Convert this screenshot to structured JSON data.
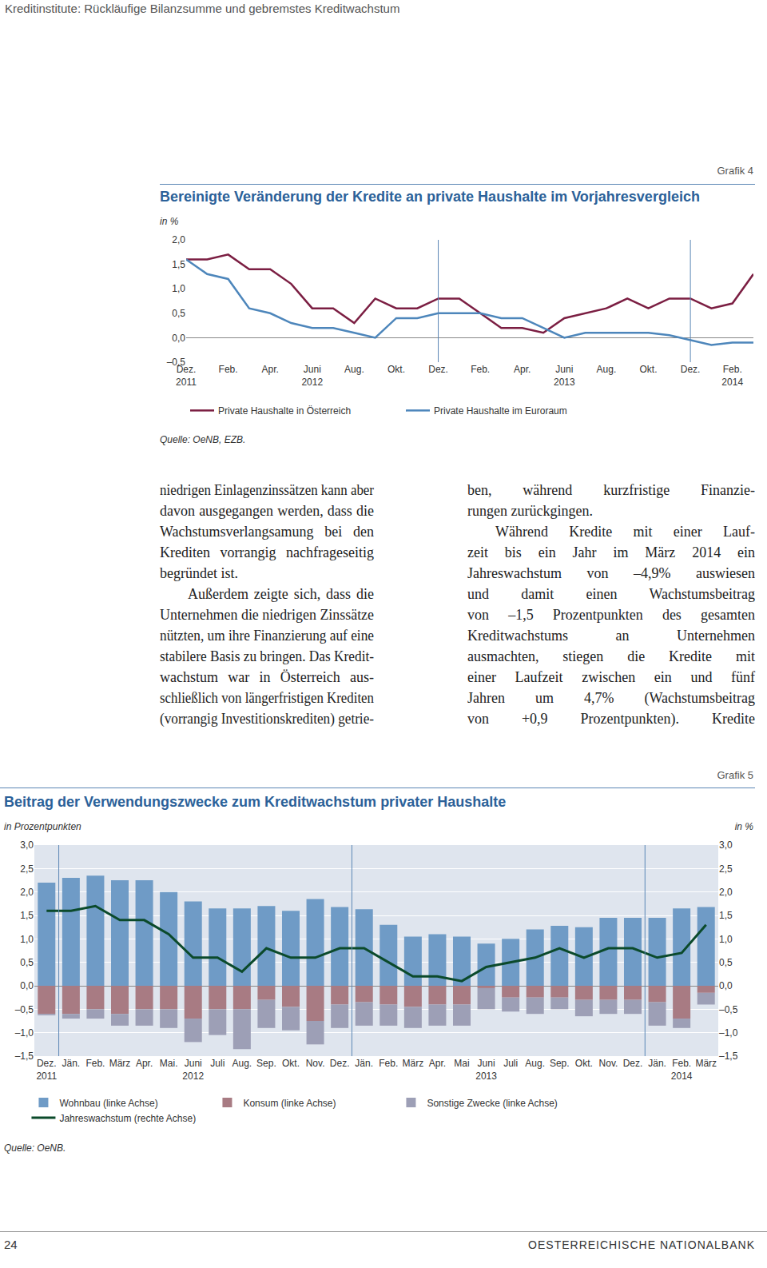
{
  "running_head": "Kreditinstitute: Rückläufige Bilanzsumme und gebremstes Kreditwachstum",
  "text": {
    "columns": [
      [
        [
          "niedrigen Einlagenzinssätzen kann aber",
          "davon ausgegangen werden, dass die",
          "Wachstumsverlangsamung bei den",
          "Krediten vorrangig nachfrageseitig",
          "begründet ist."
        ],
        [
          "Außerdem zeigte sich, dass die",
          "Unternehmen die niedrigen Zinssätze",
          "nützten, um ihre Finanzierung auf eine",
          "stabilere Basis zu bringen. Das Kredit-",
          "wachstum war in Österreich aus-",
          "schließlich von längerfristigen Krediten",
          "(vorrangig Investitionskrediten) getrie-"
        ]
      ],
      [
        [
          "ben, während kurzfristige Finanzie-",
          "rungen zurückgingen."
        ],
        [
          "Während Kredite mit einer Lauf-",
          "zeit bis ein Jahr im März 2014 ein",
          "Jahreswachstum von –4,9% auswiesen",
          "und damit einen Wachstumsbeitrag",
          "von –1,5 Prozentpunkten des gesamten",
          "Kreditwachstums an Unternehmen",
          "ausmachten, stiegen die Kredite mit",
          "einer Laufzeit zwischen ein und fünf",
          "Jahren um 4,7% (Wachstumsbeitrag",
          "von +0,9 Prozentpunkten). Kredite"
        ]
      ]
    ]
  },
  "footer": {
    "page_number": "24",
    "publisher": "OESTERREICHISCHE NATIONALBANK"
  },
  "chart_data": [
    {
      "type": "line",
      "figure_label": "Grafik 4",
      "title": "Bereinigte Veränderung der Kredite an private Haushalte im Vorjahresvergleich",
      "ylabel": "in %",
      "source": "Quelle: OeNB, EZB.",
      "categories": [
        "Dez.\n2011",
        null,
        "Feb.",
        null,
        "Apr.",
        null,
        "Juni\n2012",
        null,
        "Aug.",
        null,
        "Okt.",
        null,
        "Dez.",
        null,
        "Feb.",
        null,
        "Apr.",
        null,
        "Juni\n2013",
        null,
        "Aug.",
        null,
        "Okt.",
        null,
        "Dez.",
        null,
        "Feb.\n2014",
        null
      ],
      "series": [
        {
          "name": "Private Haushalte in Österreich",
          "color": "#7b1e42",
          "values": [
            1.6,
            1.6,
            1.7,
            1.4,
            1.4,
            1.1,
            0.6,
            0.6,
            0.3,
            0.8,
            0.6,
            0.6,
            0.8,
            0.8,
            0.5,
            0.2,
            0.2,
            0.1,
            0.4,
            0.5,
            0.6,
            0.8,
            0.6,
            0.8,
            0.8,
            0.6,
            0.7,
            1.3
          ]
        },
        {
          "name": "Private Haushalte im Euroraum",
          "color": "#4d86bb",
          "values": [
            1.6,
            1.3,
            1.2,
            0.6,
            0.5,
            0.3,
            0.2,
            0.2,
            0.1,
            0.0,
            0.4,
            0.4,
            0.5,
            0.5,
            0.5,
            0.4,
            0.4,
            0.2,
            0.0,
            0.1,
            0.1,
            0.1,
            0.1,
            0.05,
            -0.05,
            -0.15,
            -0.1,
            -0.1
          ]
        }
      ],
      "ylim": [
        -0.5,
        2.0
      ],
      "yticks": [
        {
          "value": -0.5,
          "label": "–0,5"
        },
        {
          "value": 0,
          "label": "0,0"
        },
        {
          "value": 0.5,
          "label": "0,5"
        },
        {
          "value": 1.0,
          "label": "1,0"
        },
        {
          "value": 1.5,
          "label": "1,5"
        },
        {
          "value": 2.0,
          "label": "2,0"
        }
      ],
      "grid": false,
      "legend": "bottom"
    },
    {
      "type": "bar",
      "figure_label": "Grafik 5",
      "title": "Beitrag der Verwendungszwecke zum Kreditwachstum privater Haushalte",
      "ylabel": "in Prozentpunkten",
      "y2label": "in %",
      "source": "Quelle: OeNB.",
      "categories": [
        "Dez.\n2011",
        "Jän.",
        "Feb.",
        "März",
        "Apr.",
        "Mai.",
        "Juni\n2012",
        "Juli",
        "Aug.",
        "Sep.",
        "Okt.",
        "Nov.",
        "Dez.",
        "Jän.",
        "Feb.",
        "März",
        "Apr.",
        "Mai",
        "Juni\n2013",
        "Juli",
        "Aug.",
        "Sep.",
        "Okt.",
        "Nov.",
        "Dez.",
        "Jän.",
        "Feb.\n2014",
        "März"
      ],
      "stacked": true,
      "series": [
        {
          "name": "Wohnbau (linke Achse)",
          "type": "bar",
          "color": "#6f9bc6",
          "values": [
            2.2,
            2.3,
            2.35,
            2.25,
            2.25,
            2.0,
            1.8,
            1.65,
            1.65,
            1.7,
            1.6,
            1.85,
            1.68,
            1.63,
            1.3,
            1.05,
            1.1,
            1.05,
            0.9,
            1.0,
            1.2,
            1.28,
            1.25,
            1.45,
            1.45,
            1.45,
            1.65,
            1.68
          ]
        },
        {
          "name": "Konsum (linke Achse)",
          "type": "bar",
          "color": "#a87b83",
          "values": [
            -0.6,
            -0.6,
            -0.5,
            -0.6,
            -0.5,
            -0.5,
            -0.7,
            -0.5,
            -0.5,
            -0.3,
            -0.45,
            -0.75,
            -0.4,
            -0.35,
            -0.4,
            -0.45,
            -0.4,
            -0.4,
            -0.05,
            -0.25,
            -0.25,
            -0.25,
            -0.3,
            -0.3,
            -0.3,
            -0.35,
            -0.7,
            -0.15
          ]
        },
        {
          "name": "Sonstige Zwecke (linke Achse)",
          "type": "bar",
          "color": "#9d9fb6",
          "values": [
            -0.03,
            -0.1,
            -0.2,
            -0.25,
            -0.35,
            -0.4,
            -0.5,
            -0.55,
            -0.85,
            -0.6,
            -0.5,
            -0.5,
            -0.5,
            -0.5,
            -0.45,
            -0.45,
            -0.45,
            -0.45,
            -0.45,
            -0.3,
            -0.35,
            -0.25,
            -0.35,
            -0.3,
            -0.3,
            -0.5,
            -0.2,
            -0.25
          ]
        },
        {
          "name": "Jahreswachstum (rechte Achse)",
          "type": "line",
          "axis": "y2",
          "color": "#0b4a2b",
          "values": [
            1.6,
            1.6,
            1.7,
            1.4,
            1.4,
            1.1,
            0.6,
            0.6,
            0.3,
            0.8,
            0.6,
            0.6,
            0.8,
            0.8,
            0.5,
            0.2,
            0.2,
            0.1,
            0.4,
            0.5,
            0.6,
            0.8,
            0.6,
            0.8,
            0.8,
            0.6,
            0.7,
            1.3
          ]
        }
      ],
      "ylim": [
        -1.5,
        3.0
      ],
      "yticks": [
        {
          "value": -1.5,
          "label": "–1,5"
        },
        {
          "value": -1.0,
          "label": "–1,0"
        },
        {
          "value": -0.5,
          "label": "–0,5"
        },
        {
          "value": 0,
          "label": "0,0"
        },
        {
          "value": 0.5,
          "label": "0,5"
        },
        {
          "value": 1.0,
          "label": "1,0"
        },
        {
          "value": 1.5,
          "label": "1,5"
        },
        {
          "value": 2.0,
          "label": "2,0"
        },
        {
          "value": 2.5,
          "label": "2,5"
        },
        {
          "value": 3.0,
          "label": "3,0"
        }
      ],
      "y2lim": [
        -1.5,
        3.0
      ],
      "y2ticks": [
        {
          "value": -1.5,
          "label": "–1,5"
        },
        {
          "value": -1.0,
          "label": "–1,0"
        },
        {
          "value": -0.5,
          "label": "–0,5"
        },
        {
          "value": 0,
          "label": "0,0"
        },
        {
          "value": 0.5,
          "label": "0,5"
        },
        {
          "value": 1.0,
          "label": "1,0"
        },
        {
          "value": 1.5,
          "label": "1,5"
        },
        {
          "value": 2.0,
          "label": "2,0"
        },
        {
          "value": 2.5,
          "label": "2,5"
        },
        {
          "value": 3.0,
          "label": "3,0"
        }
      ],
      "grid": true,
      "legend": "bottom"
    }
  ]
}
